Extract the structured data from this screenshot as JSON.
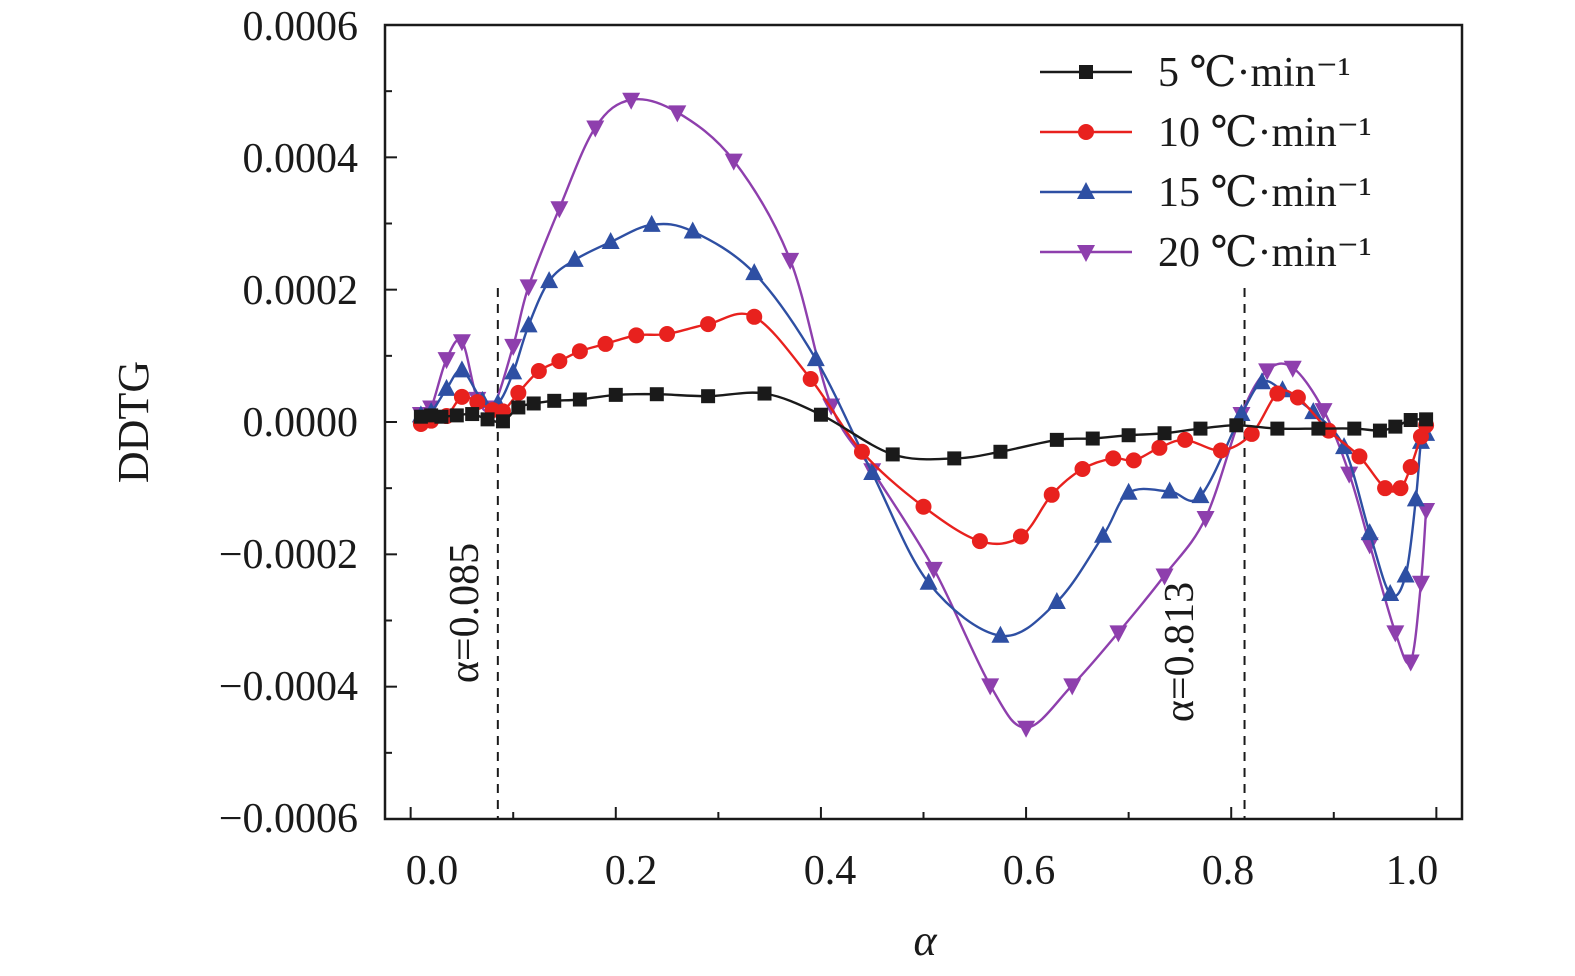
{
  "chart_data": {
    "type": "line",
    "xlabel": "α",
    "ylabel": "DDTG",
    "xlim": [
      -0.025,
      1.025
    ],
    "ylim": [
      -0.0006,
      0.0006
    ],
    "x_ticks": [
      "0.0",
      "0.2",
      "0.4",
      "0.6",
      "0.8",
      "1.0"
    ],
    "y_ticks": [
      "0.0006",
      "0.0004",
      "0.0002",
      "0.0000",
      "−0.0002",
      "−0.0004",
      "−0.0006"
    ],
    "grid": false,
    "legend_position": "top-right",
    "annotations": [
      {
        "x": 0.085,
        "label": "α=0.085"
      },
      {
        "x": 0.813,
        "label": "α=0.813"
      }
    ],
    "series": [
      {
        "name": "5 ℃·min⁻¹",
        "color": "#1a1a1a",
        "marker": "square",
        "x": [
          0.01,
          0.02,
          0.03,
          0.045,
          0.06,
          0.075,
          0.09,
          0.105,
          0.12,
          0.14,
          0.165,
          0.2,
          0.24,
          0.29,
          0.345,
          0.4,
          0.47,
          0.53,
          0.575,
          0.63,
          0.665,
          0.7,
          0.735,
          0.77,
          0.805,
          0.845,
          0.885,
          0.92,
          0.945,
          0.96,
          0.975,
          0.99
        ],
        "y": [
          8e-06,
          1e-05,
          8e-06,
          1e-05,
          1.2e-05,
          4e-06,
          1e-06,
          2.2e-05,
          2.8e-05,
          3.2e-05,
          3.4e-05,
          4.1e-05,
          4.2e-05,
          3.9e-05,
          4.3e-05,
          1.1e-05,
          -4.9e-05,
          -5.5e-05,
          -4.5e-05,
          -2.7e-05,
          -2.5e-05,
          -2e-05,
          -1.7e-05,
          -1e-05,
          -5e-06,
          -1e-05,
          -1e-05,
          -1e-05,
          -1.3e-05,
          -7e-06,
          3e-06,
          4e-06
        ]
      },
      {
        "name": "10 ℃·min⁻¹",
        "color": "#e8211e",
        "marker": "circle",
        "x": [
          0.01,
          0.02,
          0.035,
          0.05,
          0.065,
          0.08,
          0.09,
          0.105,
          0.125,
          0.145,
          0.165,
          0.19,
          0.22,
          0.25,
          0.29,
          0.335,
          0.39,
          0.44,
          0.5,
          0.555,
          0.595,
          0.625,
          0.655,
          0.685,
          0.705,
          0.73,
          0.755,
          0.79,
          0.82,
          0.845,
          0.865,
          0.895,
          0.925,
          0.95,
          0.965,
          0.975,
          0.985,
          0.99
        ],
        "y": [
          -3e-06,
          2e-06,
          9e-06,
          3.8e-05,
          3e-05,
          1.8e-05,
          1.6e-05,
          4.4e-05,
          7.7e-05,
          9.2e-05,
          0.000107,
          0.000118,
          0.000131,
          0.000133,
          0.000148,
          0.000159,
          6.5e-05,
          -4.5e-05,
          -0.000128,
          -0.00018,
          -0.000173,
          -0.00011,
          -7.1e-05,
          -5.5e-05,
          -5.8e-05,
          -3.9e-05,
          -2.7e-05,
          -4.3e-05,
          -1.8e-05,
          4.3e-05,
          3.7e-05,
          -1.3e-05,
          -5.2e-05,
          -0.0001,
          -0.0001,
          -6.8e-05,
          -2.2e-05,
          -5e-06
        ]
      },
      {
        "name": "15 ℃·min⁻¹",
        "color": "#2e4fa3",
        "marker": "triangle-up",
        "x": [
          0.01,
          0.02,
          0.035,
          0.05,
          0.07,
          0.085,
          0.1,
          0.115,
          0.135,
          0.16,
          0.195,
          0.235,
          0.275,
          0.335,
          0.395,
          0.45,
          0.505,
          0.575,
          0.63,
          0.675,
          0.7,
          0.74,
          0.77,
          0.81,
          0.83,
          0.85,
          0.88,
          0.91,
          0.935,
          0.955,
          0.97,
          0.98,
          0.985,
          0.99
        ],
        "y": [
          1e-05,
          1.5e-05,
          5e-05,
          7.8e-05,
          3.2e-05,
          2.8e-05,
          7.5e-05,
          0.000146,
          0.000213,
          0.000245,
          0.000272,
          0.000298,
          0.000288,
          0.000225,
          9.5e-05,
          -7.7e-05,
          -0.000243,
          -0.000323,
          -0.000272,
          -0.000172,
          -0.000107,
          -0.000105,
          -0.000112,
          1.2e-05,
          6e-05,
          4.8e-05,
          1.5e-05,
          -3.8e-05,
          -0.000168,
          -0.00026,
          -0.000232,
          -0.000117,
          -3e-05,
          -1.8e-05
        ]
      },
      {
        "name": "20 ℃·min⁻¹",
        "color": "#8e3fad",
        "marker": "triangle-down",
        "x": [
          0.01,
          0.02,
          0.035,
          0.05,
          0.065,
          0.08,
          0.1,
          0.115,
          0.145,
          0.18,
          0.215,
          0.26,
          0.315,
          0.37,
          0.41,
          0.45,
          0.51,
          0.565,
          0.6,
          0.645,
          0.69,
          0.735,
          0.775,
          0.81,
          0.835,
          0.86,
          0.89,
          0.915,
          0.935,
          0.96,
          0.975,
          0.985,
          0.99
        ],
        "y": [
          1.2e-05,
          2.2e-05,
          9.5e-05,
          0.000122,
          3.5e-05,
          2.2e-05,
          0.000115,
          0.000205,
          0.000323,
          0.000445,
          0.000487,
          0.000468,
          0.000395,
          0.000245,
          2.5e-05,
          -7.3e-05,
          -0.000222,
          -0.000398,
          -0.000462,
          -0.000398,
          -0.000318,
          -0.000232,
          -0.000145,
          1.2e-05,
          7.8e-05,
          8.2e-05,
          1.8e-05,
          -7.8e-05,
          -0.000185,
          -0.000318,
          -0.000362,
          -0.000243,
          -0.000133
        ]
      }
    ]
  }
}
